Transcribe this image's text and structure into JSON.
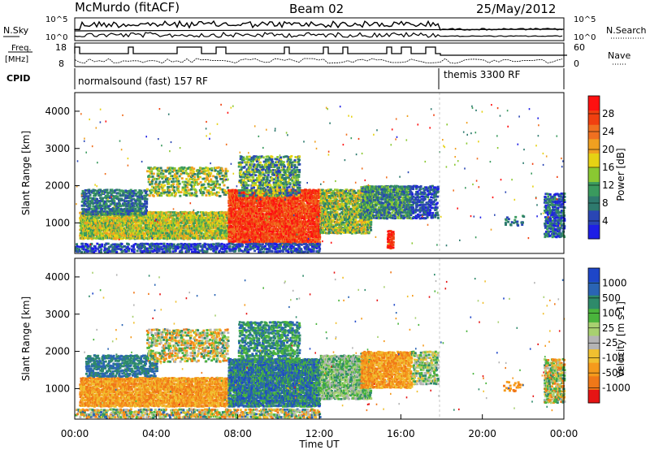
{
  "header": {
    "station": "McMurdo (fitACF)",
    "beam": "Beam 02",
    "date": "25/May/2012"
  },
  "top_panels": {
    "nsky_label": "N.Sky",
    "nsearch_label": "N.Search",
    "nsky_ticks": [
      "10^5",
      "10^0"
    ],
    "nsearch_ticks": [
      "10^5",
      "10^0"
    ],
    "freq_label_1": "Freq.",
    "freq_label_2": "[MHz]",
    "freq_ticks": [
      "18",
      "8"
    ],
    "nave_label": "Nave",
    "nave_ticks": [
      "60",
      "0"
    ],
    "cpid_label": "CPID",
    "cpid_1": "normalsound (fast) 157 RF",
    "cpid_2": "themis 3300 RF"
  },
  "colors": {
    "power_scale": [
      "#1e1ee6",
      "#2a46b4",
      "#2e7a6e",
      "#3a9a5e",
      "#8ac832",
      "#e6d214",
      "#f0a020",
      "#f07020",
      "#f04010",
      "#ff1010"
    ],
    "velocity_scale": [
      "#e61414",
      "#f07818",
      "#f59a1c",
      "#f0c030",
      "#b4b4b4",
      "#a8d070",
      "#4ab43c",
      "#2e8a6a",
      "#2a64b4",
      "#1e46c8"
    ]
  },
  "chart_data": [
    {
      "type": "heatmap",
      "name": "power",
      "ylabel": "Slant Range [km]",
      "ylim": [
        180,
        4500
      ],
      "yticks": [
        "4000",
        "3000",
        "2000",
        "1000"
      ],
      "colorbar_label": "Power [dB]",
      "colorbar_ticks": [
        "28",
        "24",
        "20",
        "16",
        "12",
        "8",
        "4"
      ]
    },
    {
      "type": "heatmap",
      "name": "velocity",
      "ylabel": "Slant Range [km]",
      "ylim": [
        180,
        4500
      ],
      "yticks": [
        "4000",
        "3000",
        "2000",
        "1000"
      ],
      "colorbar_label": "Velocity [m s-1]",
      "colorbar_ticks": [
        "1000",
        "500",
        "100",
        "25",
        "-25",
        "-100",
        "-500",
        "-1000"
      ]
    }
  ],
  "time_axis": {
    "xlabel": "Time UT",
    "xticks": [
      "00:00",
      "04:00",
      "08:00",
      "12:00",
      "16:00",
      "20:00",
      "00:00"
    ],
    "xlim": [
      0,
      24
    ]
  }
}
